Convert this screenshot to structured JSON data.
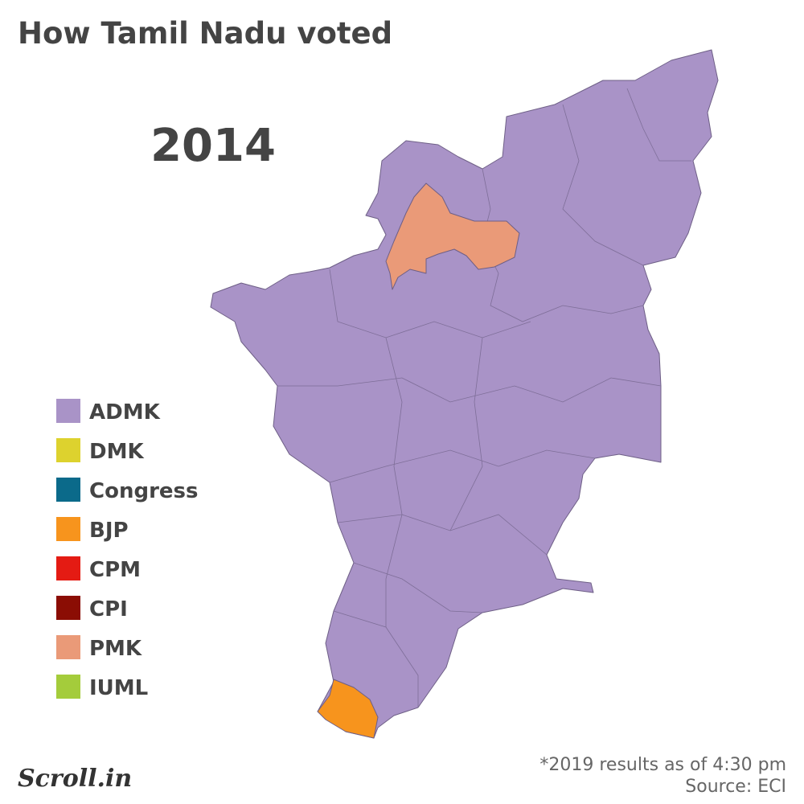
{
  "header": {
    "title": "How Tamil Nadu voted",
    "year": "2014"
  },
  "legend": [
    {
      "label": "ADMK",
      "color": "#a993c7"
    },
    {
      "label": "DMK",
      "color": "#ddd22e"
    },
    {
      "label": "Congress",
      "color": "#0b6a8a"
    },
    {
      "label": "BJP",
      "color": "#f7941d"
    },
    {
      "label": "CPM",
      "color": "#e41b13"
    },
    {
      "label": "CPI",
      "color": "#8b0d04"
    },
    {
      "label": "PMK",
      "color": "#ea9a78"
    },
    {
      "label": "IUML",
      "color": "#a4cc3b"
    }
  ],
  "footer": {
    "logo": "Scroll.in",
    "note": "*2019 results as of 4:30 pm",
    "source": "Source: ECI"
  }
}
